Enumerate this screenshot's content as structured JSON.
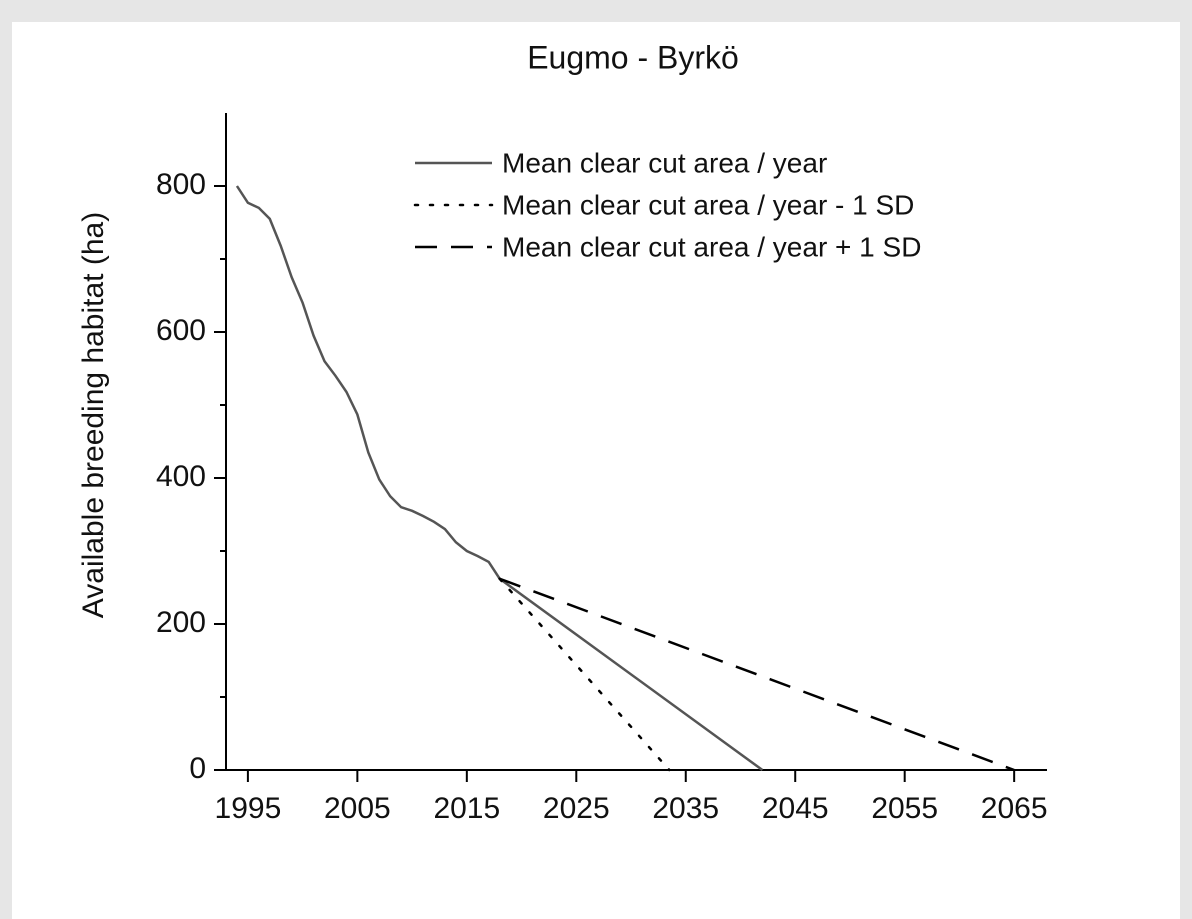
{
  "chart_data": {
    "type": "line",
    "title": "Eugmo - Byrkö",
    "y_label": "Available breeding habitat (ha)",
    "xlim": [
      1993,
      2068
    ],
    "xticks": [
      1995,
      2005,
      2015,
      2025,
      2035,
      2045,
      2055,
      2065
    ],
    "ylim": [
      0,
      900
    ],
    "yticks": [
      0,
      200,
      400,
      600,
      800
    ],
    "yminorticks": [
      100,
      300,
      500,
      700
    ],
    "legend": "top-right",
    "grid": false,
    "series": [
      {
        "name": "Mean clear cut area / year",
        "color": "#555555",
        "dash": "solid",
        "x": [
          1994,
          1995,
          1996,
          1997,
          1998,
          1999,
          2000,
          2001,
          2002,
          2003,
          2004,
          2005,
          2006,
          2007,
          2008,
          2009,
          2010,
          2011,
          2012,
          2013,
          2014,
          2015,
          2016,
          2017,
          2018,
          2042
        ],
        "values": [
          800,
          777,
          770,
          755,
          718,
          675,
          640,
          595,
          560,
          540,
          518,
          487,
          435,
          398,
          375,
          360,
          355,
          348,
          340,
          330,
          312,
          300,
          293,
          285,
          262,
          0
        ]
      },
      {
        "name": "Mean clear cut area / year - 1 SD",
        "color": "#000000",
        "dash": "dotted",
        "x": [
          2018,
          2033.5
        ],
        "values": [
          262,
          0
        ]
      },
      {
        "name": "Mean clear cut area / year + 1 SD",
        "color": "#000000",
        "dash": "dashed",
        "x": [
          2018,
          2065
        ],
        "values": [
          262,
          0
        ]
      }
    ]
  }
}
